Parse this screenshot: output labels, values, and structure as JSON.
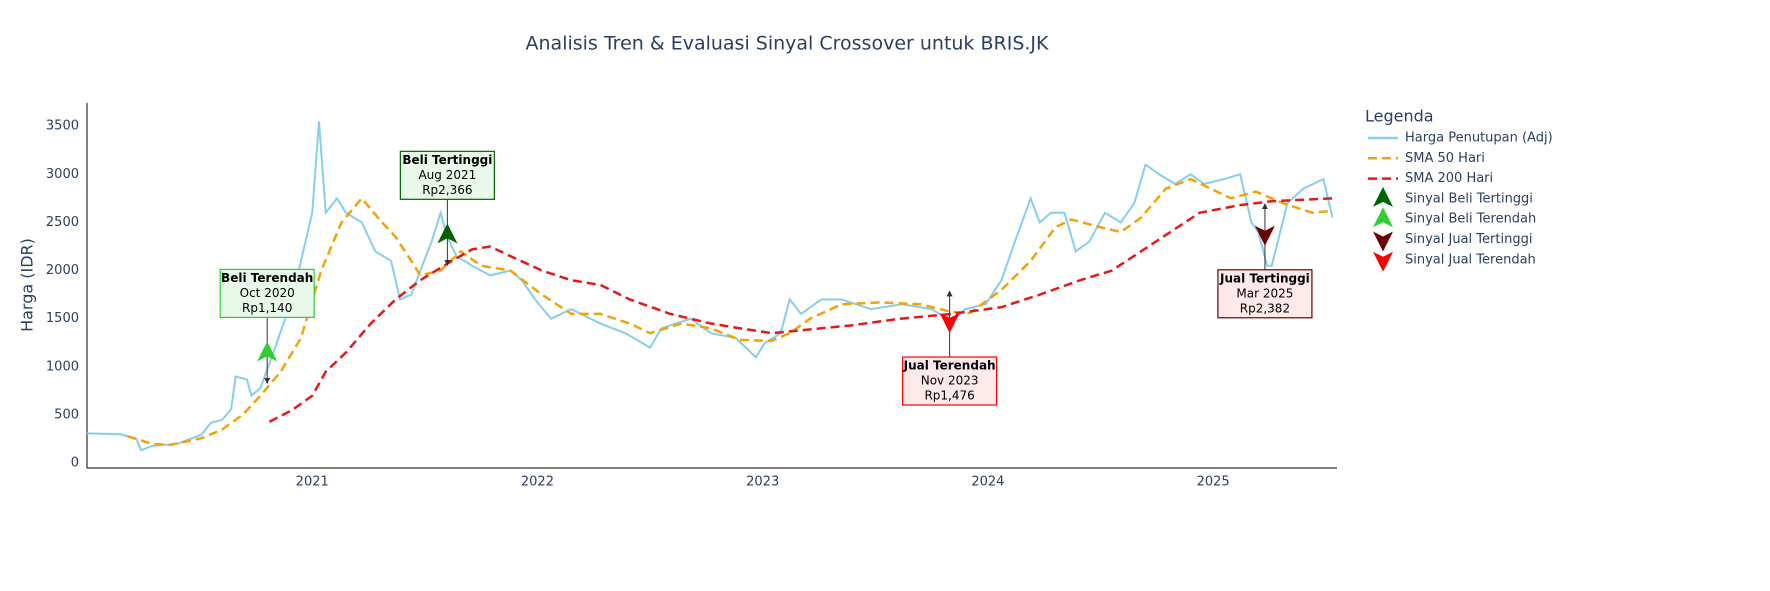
{
  "chart_data": {
    "type": "line",
    "title": "Analisis Tren & Evaluasi Sinyal Crossover untuk BRIS.JK",
    "y_label": "Harga (IDR)",
    "legend_title": "Legenda",
    "legend": "right",
    "xlim": [
      2020.0,
      2025.55
    ],
    "xticks": [
      2021,
      2022,
      2023,
      2024,
      2025
    ],
    "ylim": [
      -50,
      3740
    ],
    "yticks": [
      0,
      500,
      1000,
      1500,
      2000,
      2500,
      3000,
      3500
    ],
    "grid": false,
    "series": [
      {
        "name": "Harga Penutupan (Adj)",
        "color": "#87ceeb",
        "dash": false,
        "x": [
          2020.0,
          2020.15,
          2020.22,
          2020.24,
          2020.29,
          2020.4,
          2020.49,
          2020.51,
          2020.55,
          2020.6,
          2020.64,
          2020.66,
          2020.71,
          2020.73,
          2020.77,
          2020.82,
          2020.88,
          2020.94,
          2020.97,
          2021.0,
          2021.03,
          2021.06,
          2021.11,
          2021.15,
          2021.22,
          2021.28,
          2021.35,
          2021.39,
          2021.44,
          2021.48,
          2021.53,
          2021.57,
          2021.6,
          2021.64,
          2021.71,
          2021.79,
          2021.88,
          2021.93,
          2021.99,
          2022.06,
          2022.15,
          2022.28,
          2022.39,
          2022.5,
          2022.55,
          2022.68,
          2022.77,
          2022.88,
          2022.97,
          2023.01,
          2023.08,
          2023.12,
          2023.17,
          2023.26,
          2023.35,
          2023.48,
          2023.62,
          2023.75,
          2023.84,
          2023.9,
          2023.99,
          2024.06,
          2024.12,
          2024.19,
          2024.23,
          2024.28,
          2024.34,
          2024.39,
          2024.45,
          2024.52,
          2024.59,
          2024.65,
          2024.7,
          2024.76,
          2024.83,
          2024.9,
          2024.96,
          2025.05,
          2025.12,
          2025.17,
          2025.2,
          2025.24,
          2025.26,
          2025.33,
          2025.4,
          2025.49,
          2025.53
        ],
        "values": [
          310,
          300,
          250,
          135,
          180,
          200,
          280,
          300,
          420,
          450,
          560,
          900,
          870,
          700,
          780,
          1100,
          1500,
          2000,
          2300,
          2600,
          3550,
          2600,
          2750,
          2600,
          2500,
          2200,
          2100,
          1700,
          1750,
          2000,
          2300,
          2600,
          2350,
          2150,
          2050,
          1950,
          2000,
          1900,
          1700,
          1500,
          1600,
          1450,
          1350,
          1200,
          1400,
          1500,
          1350,
          1300,
          1100,
          1250,
          1350,
          1700,
          1550,
          1700,
          1700,
          1600,
          1650,
          1600,
          1470,
          1600,
          1650,
          1900,
          2300,
          2750,
          2500,
          2600,
          2600,
          2200,
          2300,
          2600,
          2500,
          2700,
          3100,
          3000,
          2900,
          3000,
          2900,
          2950,
          3000,
          2500,
          2400,
          2050,
          2050,
          2700,
          2850,
          2950,
          2550
        ]
      },
      {
        "name": "SMA 50 Hari",
        "color": "#f0a30a",
        "dash": true,
        "x": [
          2020.18,
          2020.29,
          2020.37,
          2020.51,
          2020.6,
          2020.69,
          2020.77,
          2020.86,
          2020.95,
          2021.04,
          2021.13,
          2021.22,
          2021.31,
          2021.37,
          2021.44,
          2021.48,
          2021.57,
          2021.66,
          2021.75,
          2021.88,
          2022.02,
          2022.15,
          2022.28,
          2022.41,
          2022.5,
          2022.64,
          2022.77,
          2022.9,
          2023.04,
          2023.12,
          2023.21,
          2023.35,
          2023.52,
          2023.7,
          2023.84,
          2023.92,
          2024.06,
          2024.19,
          2024.3,
          2024.37,
          2024.5,
          2024.59,
          2024.68,
          2024.79,
          2024.9,
          2024.99,
          2025.08,
          2025.19,
          2025.31,
          2025.44,
          2025.53
        ],
        "values": [
          280,
          200,
          190,
          260,
          350,
          500,
          700,
          950,
          1300,
          2000,
          2500,
          2750,
          2500,
          2350,
          2100,
          1950,
          2000,
          2200,
          2050,
          2000,
          1750,
          1550,
          1550,
          1450,
          1350,
          1450,
          1400,
          1280,
          1270,
          1350,
          1500,
          1650,
          1670,
          1650,
          1570,
          1560,
          1800,
          2100,
          2450,
          2530,
          2450,
          2400,
          2550,
          2850,
          2950,
          2850,
          2750,
          2820,
          2700,
          2600,
          2620
        ]
      },
      {
        "name": "SMA 200 Hari",
        "color": "#e31a1c",
        "dash": true,
        "x": [
          2020.81,
          2020.91,
          2021.0,
          2021.06,
          2021.15,
          2021.26,
          2021.37,
          2021.48,
          2021.62,
          2021.71,
          2021.79,
          2021.88,
          2022.02,
          2022.15,
          2022.28,
          2022.41,
          2022.59,
          2022.77,
          2022.9,
          2023.04,
          2023.17,
          2023.39,
          2023.61,
          2023.84,
          2024.06,
          2024.23,
          2024.41,
          2024.55,
          2024.68,
          2024.81,
          2024.94,
          2025.12,
          2025.26,
          2025.53
        ],
        "values": [
          430,
          550,
          700,
          950,
          1150,
          1450,
          1700,
          1900,
          2100,
          2220,
          2250,
          2150,
          2000,
          1900,
          1850,
          1700,
          1550,
          1450,
          1400,
          1350,
          1380,
          1430,
          1500,
          1550,
          1620,
          1750,
          1900,
          2000,
          2200,
          2400,
          2600,
          2680,
          2720,
          2750
        ]
      },
      {
        "name": "Sinyal Beli Tertinggi",
        "color": "#006400",
        "symbol": "triangle-up",
        "x": [
          2021.6
        ],
        "values": [
          2366
        ],
        "value_labels": [
          "Rp2,366"
        ],
        "annotation": {
          "title": "Beli Tertinggi",
          "date": "Aug 2021"
        }
      },
      {
        "name": "Sinyal Beli Terendah",
        "color": "#32cd32",
        "symbol": "triangle-up",
        "x": [
          2020.8
        ],
        "values": [
          1140
        ],
        "value_labels": [
          "Rp1,140"
        ],
        "annotation": {
          "title": "Beli Terendah",
          "date": "Oct 2020"
        }
      },
      {
        "name": "Sinyal Jual Tertinggi",
        "color": "#6b0000",
        "symbol": "triangle-down",
        "x": [
          2025.23
        ],
        "values": [
          2382
        ],
        "value_labels": [
          "Rp2,382"
        ],
        "annotation": {
          "title": "Jual Tertinggi",
          "date": "Mar 2025"
        }
      },
      {
        "name": "Sinyal Jual Terendah",
        "color": "#ff0000",
        "symbol": "triangle-down",
        "x": [
          2023.83
        ],
        "values": [
          1476
        ],
        "value_labels": [
          "Rp1,476"
        ],
        "annotation": {
          "title": "Jual Terendah",
          "date": "Nov 2023"
        }
      }
    ]
  }
}
